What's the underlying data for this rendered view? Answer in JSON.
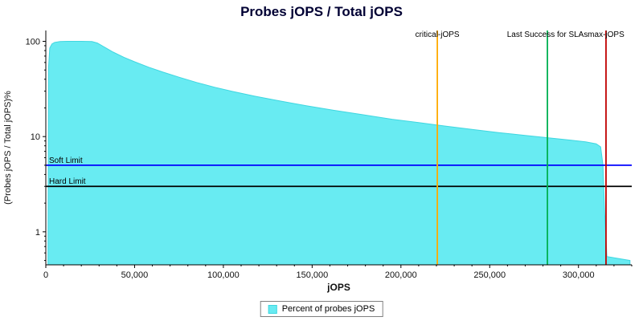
{
  "chart_data": {
    "type": "area",
    "title": "Probes jOPS / Total jOPS",
    "xlabel": "jOPS",
    "ylabel": "(Probes jOPS / Total jOPS)%",
    "y_scale": "log",
    "xlim": [
      0,
      330000
    ],
    "ylim": [
      0.45,
      130
    ],
    "x_ticks": [
      0,
      50000,
      100000,
      150000,
      200000,
      250000,
      300000
    ],
    "y_ticks": [
      1,
      10,
      100
    ],
    "grid": false,
    "legend_position": "bottom",
    "series": [
      {
        "name": "Percent of probes jOPS",
        "color": "#68ebf2",
        "stroke": "#3fd6e0",
        "points": [
          [
            1200,
            0.5
          ],
          [
            1600,
            55
          ],
          [
            2200,
            85
          ],
          [
            3500,
            94
          ],
          [
            5000,
            97.5
          ],
          [
            8000,
            99.5
          ],
          [
            12000,
            100
          ],
          [
            20000,
            100
          ],
          [
            26000,
            99.5
          ],
          [
            29000,
            96
          ],
          [
            33000,
            87
          ],
          [
            38000,
            77
          ],
          [
            44000,
            68
          ],
          [
            50000,
            61
          ],
          [
            58000,
            53.5
          ],
          [
            66000,
            47.5
          ],
          [
            75000,
            42
          ],
          [
            85000,
            37
          ],
          [
            95000,
            33
          ],
          [
            105000,
            29.8
          ],
          [
            118000,
            26.5
          ],
          [
            132000,
            23.6
          ],
          [
            147000,
            21
          ],
          [
            162000,
            18.9
          ],
          [
            178000,
            17
          ],
          [
            195000,
            15.2
          ],
          [
            210000,
            14
          ],
          [
            225000,
            12.9
          ],
          [
            240000,
            11.9
          ],
          [
            255000,
            11
          ],
          [
            270000,
            10.3
          ],
          [
            283000,
            9.7
          ],
          [
            295000,
            9.2
          ],
          [
            304000,
            8.8
          ],
          [
            310000,
            8.4
          ],
          [
            312500,
            7.8
          ],
          [
            313800,
            5
          ],
          [
            314800,
            1.5
          ],
          [
            316000,
            0.55
          ],
          [
            329000,
            0.5
          ]
        ]
      }
    ],
    "v_markers": [
      {
        "label": "critical-jOPS",
        "x": 220500,
        "color": "#ffaa00"
      },
      {
        "label": "Last Success for SLAs",
        "x": 282500,
        "color": "#00b050"
      },
      {
        "label": "max-jOPS",
        "x": 315500,
        "color": "#c00000"
      }
    ],
    "h_markers": [
      {
        "label": "Soft Limit",
        "y": 5,
        "color": "#0000ff"
      },
      {
        "label": "Hard Limit",
        "y": 3,
        "color": "#000000"
      }
    ]
  }
}
